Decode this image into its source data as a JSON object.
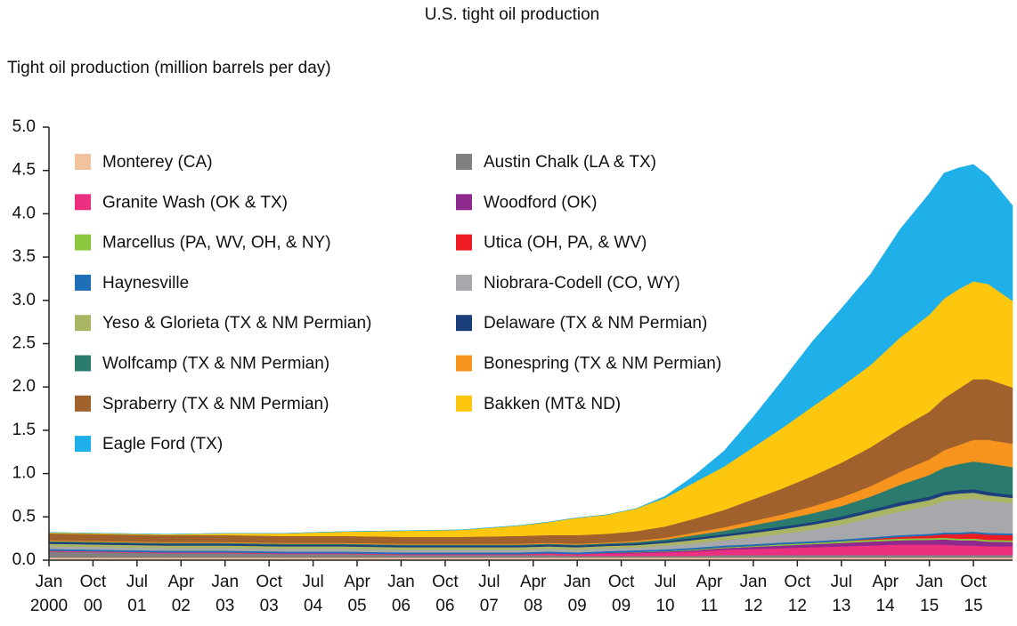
{
  "chart_data": {
    "type": "stacked-area",
    "title": "U.S. tight oil production",
    "y_label": "Tight oil production (million barrels per day)",
    "x": [
      "2000-01",
      "2001-01",
      "2002-01",
      "2003-01",
      "2004-01",
      "2005-01",
      "2006-01",
      "2007-01",
      "2008-01",
      "2008-07",
      "2009-01",
      "2009-07",
      "2010-01",
      "2010-07",
      "2011-01",
      "2011-07",
      "2012-01",
      "2012-07",
      "2013-01",
      "2013-07",
      "2014-01",
      "2014-07",
      "2015-01",
      "2015-04",
      "2015-07",
      "2015-10",
      "2016-01",
      "2016-06"
    ],
    "xlim": [
      "2000-01",
      "2016-06"
    ],
    "xticks": [
      {
        "value": "2000-01",
        "label": "Jan 2000"
      },
      {
        "value": "2000-10",
        "label": "Oct 00"
      },
      {
        "value": "2001-07",
        "label": "Jul 01"
      },
      {
        "value": "2002-04",
        "label": "Apr 02"
      },
      {
        "value": "2003-01",
        "label": "Jan 03"
      },
      {
        "value": "2003-10",
        "label": "Oct 03"
      },
      {
        "value": "2004-07",
        "label": "Jul 04"
      },
      {
        "value": "2005-04",
        "label": "Apr 05"
      },
      {
        "value": "2006-01",
        "label": "Jan 06"
      },
      {
        "value": "2006-10",
        "label": "Oct 06"
      },
      {
        "value": "2007-07",
        "label": "Jul 07"
      },
      {
        "value": "2008-04",
        "label": "Apr 08"
      },
      {
        "value": "2009-01",
        "label": "Jan 09"
      },
      {
        "value": "2009-10",
        "label": "Oct 09"
      },
      {
        "value": "2010-07",
        "label": "Jul 10"
      },
      {
        "value": "2011-04",
        "label": "Apr 11"
      },
      {
        "value": "2012-01",
        "label": "Jan 12"
      },
      {
        "value": "2012-10",
        "label": "Oct 12"
      },
      {
        "value": "2013-07",
        "label": "Jul 13"
      },
      {
        "value": "2014-04",
        "label": "Apr 14"
      },
      {
        "value": "2015-01",
        "label": "Jan 15"
      },
      {
        "value": "2015-10",
        "label": "Oct 15"
      }
    ],
    "ylim": [
      0,
      5
    ],
    "yticks": [
      {
        "value": 0,
        "label": "0.0"
      },
      0.5,
      {
        "value": 1,
        "label": "1.0"
      },
      1.5,
      {
        "value": 2,
        "label": "2.0"
      },
      2.5,
      {
        "value": 3,
        "label": "3.0"
      },
      3.5,
      {
        "value": 4,
        "label": "4.0"
      },
      4.5,
      {
        "value": 5,
        "label": "5.0"
      }
    ],
    "grid": false,
    "series": [
      {
        "name": "Monterey (CA)",
        "color": "#f2c29f",
        "values": [
          0.03,
          0.03,
          0.03,
          0.03,
          0.03,
          0.03,
          0.03,
          0.03,
          0.03,
          0.03,
          0.03,
          0.03,
          0.03,
          0.03,
          0.03,
          0.03,
          0.03,
          0.03,
          0.03,
          0.03,
          0.03,
          0.03,
          0.03,
          0.03,
          0.03,
          0.03,
          0.03,
          0.03
        ]
      },
      {
        "name": "Austin Chalk (LA & TX)",
        "color": "#808080",
        "values": [
          0.07,
          0.06,
          0.05,
          0.05,
          0.04,
          0.04,
          0.03,
          0.03,
          0.03,
          0.03,
          0.02,
          0.02,
          0.02,
          0.02,
          0.02,
          0.03,
          0.03,
          0.03,
          0.03,
          0.03,
          0.03,
          0.03,
          0.03,
          0.03,
          0.03,
          0.03,
          0.03,
          0.03
        ]
      },
      {
        "name": "Granite Wash (OK & TX)",
        "color": "#ec2f7f",
        "values": [
          0.01,
          0.01,
          0.01,
          0.01,
          0.01,
          0.01,
          0.01,
          0.01,
          0.01,
          0.02,
          0.02,
          0.03,
          0.03,
          0.04,
          0.05,
          0.06,
          0.07,
          0.08,
          0.09,
          0.1,
          0.11,
          0.12,
          0.12,
          0.12,
          0.11,
          0.11,
          0.1,
          0.1
        ]
      },
      {
        "name": "Woodford (OK)",
        "color": "#8e2a8e",
        "values": [
          0,
          0,
          0,
          0,
          0,
          0,
          0,
          0,
          0,
          0,
          0,
          0.005,
          0.01,
          0.01,
          0.015,
          0.02,
          0.025,
          0.03,
          0.035,
          0.04,
          0.045,
          0.05,
          0.055,
          0.06,
          0.06,
          0.06,
          0.055,
          0.05
        ]
      },
      {
        "name": "Marcellus (PA, WV, OH, & NY)",
        "color": "#8dc63f",
        "values": [
          0,
          0,
          0,
          0,
          0,
          0,
          0,
          0,
          0,
          0,
          0,
          0,
          0.005,
          0.005,
          0.01,
          0.01,
          0.01,
          0.015,
          0.015,
          0.02,
          0.02,
          0.02,
          0.02,
          0.02,
          0.02,
          0.02,
          0.02,
          0.02
        ]
      },
      {
        "name": "Utica (OH, PA, & WV)",
        "color": "#ed1c24",
        "values": [
          0,
          0,
          0,
          0,
          0,
          0,
          0,
          0,
          0,
          0,
          0,
          0,
          0,
          0,
          0,
          0,
          0,
          0,
          0,
          0,
          0.01,
          0.02,
          0.03,
          0.04,
          0.05,
          0.06,
          0.06,
          0.06
        ]
      },
      {
        "name": "Haynesville",
        "color": "#1f6fb6",
        "values": [
          0.02,
          0.02,
          0.02,
          0.02,
          0.02,
          0.02,
          0.02,
          0.02,
          0.02,
          0.02,
          0.02,
          0.02,
          0.02,
          0.02,
          0.02,
          0.02,
          0.02,
          0.02,
          0.02,
          0.02,
          0.02,
          0.02,
          0.02,
          0.02,
          0.02,
          0.02,
          0.02,
          0.02
        ]
      },
      {
        "name": "Niobrara-Codell (CO, WY)",
        "color": "#a6a8ab",
        "values": [
          0.03,
          0.03,
          0.03,
          0.03,
          0.03,
          0.03,
          0.03,
          0.03,
          0.03,
          0.03,
          0.03,
          0.03,
          0.03,
          0.04,
          0.05,
          0.06,
          0.08,
          0.1,
          0.13,
          0.17,
          0.22,
          0.27,
          0.32,
          0.36,
          0.38,
          0.38,
          0.37,
          0.35
        ]
      },
      {
        "name": "Yeso & Glorieta (TX & NM Permian)",
        "color": "#a9b465",
        "values": [
          0.03,
          0.03,
          0.03,
          0.03,
          0.03,
          0.03,
          0.03,
          0.03,
          0.03,
          0.03,
          0.03,
          0.03,
          0.03,
          0.035,
          0.04,
          0.045,
          0.05,
          0.055,
          0.06,
          0.06,
          0.065,
          0.07,
          0.07,
          0.07,
          0.07,
          0.07,
          0.065,
          0.06
        ]
      },
      {
        "name": "Delaware (TX & NM Permian)",
        "color": "#1b3f7a",
        "values": [
          0.02,
          0.02,
          0.02,
          0.02,
          0.02,
          0.02,
          0.02,
          0.02,
          0.02,
          0.02,
          0.02,
          0.02,
          0.02,
          0.02,
          0.025,
          0.025,
          0.03,
          0.03,
          0.03,
          0.035,
          0.035,
          0.04,
          0.04,
          0.04,
          0.04,
          0.04,
          0.04,
          0.035
        ]
      },
      {
        "name": "Wolfcamp (TX & NM Permian)",
        "color": "#2a7a6e",
        "values": [
          0.01,
          0.01,
          0.01,
          0.01,
          0.01,
          0.01,
          0.01,
          0.01,
          0.01,
          0.01,
          0.01,
          0.01,
          0.015,
          0.02,
          0.03,
          0.04,
          0.06,
          0.08,
          0.1,
          0.12,
          0.15,
          0.2,
          0.25,
          0.28,
          0.3,
          0.32,
          0.33,
          0.32
        ]
      },
      {
        "name": "Bonespring (TX & NM Permian)",
        "color": "#f7941d",
        "values": [
          0.01,
          0.01,
          0.01,
          0.01,
          0.01,
          0.01,
          0.01,
          0.01,
          0.01,
          0.01,
          0.01,
          0.01,
          0.015,
          0.02,
          0.03,
          0.04,
          0.05,
          0.06,
          0.08,
          0.1,
          0.12,
          0.15,
          0.18,
          0.2,
          0.22,
          0.25,
          0.27,
          0.27
        ]
      },
      {
        "name": "Spraberry (TX & NM Permian)",
        "color": "#a0612d",
        "values": [
          0.08,
          0.08,
          0.08,
          0.08,
          0.08,
          0.08,
          0.08,
          0.08,
          0.09,
          0.09,
          0.1,
          0.1,
          0.11,
          0.13,
          0.16,
          0.2,
          0.25,
          0.3,
          0.35,
          0.4,
          0.45,
          0.5,
          0.55,
          0.6,
          0.65,
          0.7,
          0.7,
          0.65
        ]
      },
      {
        "name": "Bakken (MT& ND)",
        "color": "#fdc70f",
        "values": [
          0.01,
          0.01,
          0.01,
          0.02,
          0.03,
          0.05,
          0.07,
          0.08,
          0.12,
          0.15,
          0.2,
          0.22,
          0.26,
          0.33,
          0.42,
          0.5,
          0.6,
          0.7,
          0.8,
          0.88,
          0.95,
          1.05,
          1.12,
          1.15,
          1.15,
          1.13,
          1.1,
          1.0
        ]
      },
      {
        "name": "Eagle Ford (TX)",
        "color": "#1fb0e9",
        "values": [
          0,
          0,
          0,
          0,
          0,
          0,
          0,
          0,
          0,
          0,
          0,
          0,
          0,
          0.02,
          0.08,
          0.18,
          0.35,
          0.55,
          0.75,
          0.9,
          1.05,
          1.25,
          1.4,
          1.45,
          1.4,
          1.35,
          1.25,
          1.1
        ]
      }
    ]
  }
}
